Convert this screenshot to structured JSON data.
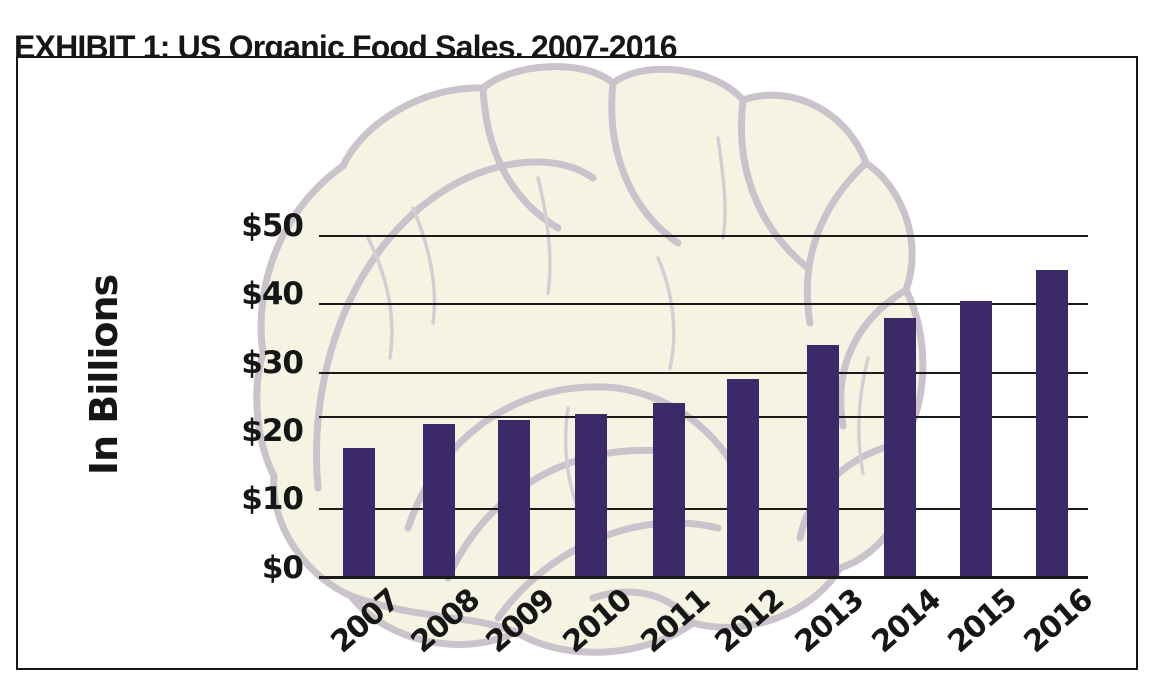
{
  "page": {
    "heading": "EXHIBIT 1: US Organic Food Sales, 2007-2016"
  },
  "chart_data": {
    "type": "bar",
    "title": "EXHIBIT 1: US Organic Food Sales, 2007-2016",
    "ylabel": "In Billions",
    "xlabel": "",
    "unit": "USD billions",
    "categories": [
      "2007",
      "2008",
      "2009",
      "2010",
      "2011",
      "2012",
      "2013",
      "2014",
      "2015",
      "2016"
    ],
    "values": [
      19,
      22.5,
      23,
      24,
      25.5,
      29,
      34,
      38,
      40.5,
      45
    ],
    "yticks": [
      {
        "label": "$50",
        "value": 50
      },
      {
        "label": "$40",
        "value": 40
      },
      {
        "label": "$30",
        "value": 30
      },
      {
        "label": "$20",
        "value": 20
      },
      {
        "label": "$10",
        "value": 10
      },
      {
        "label": "$0",
        "value": 0
      }
    ],
    "ylim": [
      0,
      50
    ],
    "grid": "horizontal",
    "legend": "none",
    "watermark": "lettuce line-drawing illustration"
  },
  "colors": {
    "bar": "#3b2a67",
    "ink": "#161616",
    "grid_line": "#1a1a1a",
    "background": "#ffffff",
    "watermark_fill": "#f5f4e2",
    "watermark_stroke": "#cbc3cb",
    "watermark_stroke_thin": "#d4cdd3"
  }
}
